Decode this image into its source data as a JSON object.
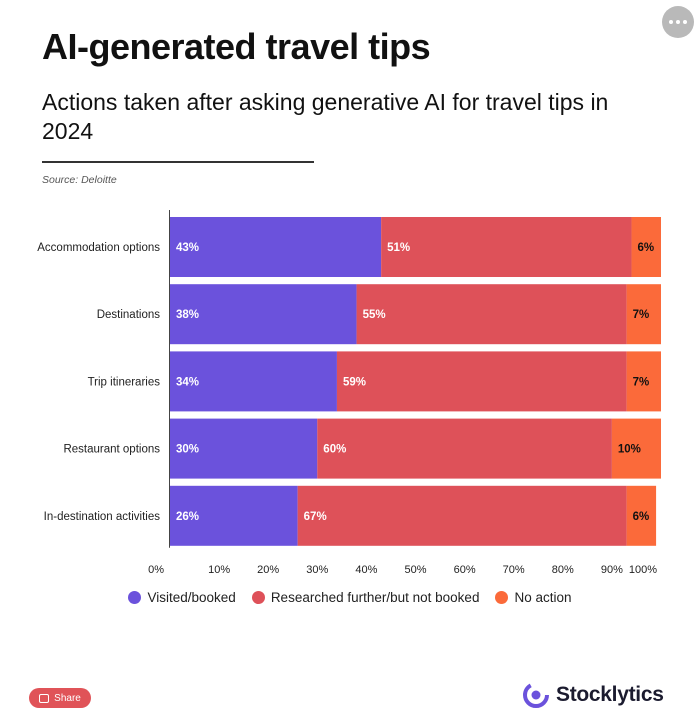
{
  "title": "AI-generated travel tips",
  "subtitle": "Actions taken after asking generative AI for travel tips in 2024",
  "source": "Source: Deloitte",
  "share_label": "Share",
  "brand": "Stocklytics",
  "icons": {
    "more": "more-dots-icon",
    "share": "share-icon",
    "logo": "stocklytics-logo-icon"
  },
  "chart_data": {
    "type": "bar",
    "orientation": "horizontal",
    "stacked": true,
    "categories": [
      "Accommodation options",
      "Destinations",
      "Trip itineraries",
      "Restaurant options",
      "In-destination activities"
    ],
    "series": [
      {
        "name": "Visited/booked",
        "color": "#6b52dc",
        "values": [
          43,
          38,
          34,
          30,
          26
        ]
      },
      {
        "name": "Researched further/but not booked",
        "color": "#de5159",
        "values": [
          51,
          55,
          59,
          60,
          67
        ]
      },
      {
        "name": "No action",
        "color": "#fb6a3a",
        "values": [
          6,
          7,
          7,
          10,
          6
        ]
      }
    ],
    "x_ticks": [
      "0%",
      "10%",
      "20%",
      "30%",
      "40%",
      "50%",
      "60%",
      "70%",
      "80%",
      "90%",
      "100%"
    ],
    "xlim": [
      0,
      100
    ],
    "grid": false,
    "legend_position": "bottom"
  }
}
